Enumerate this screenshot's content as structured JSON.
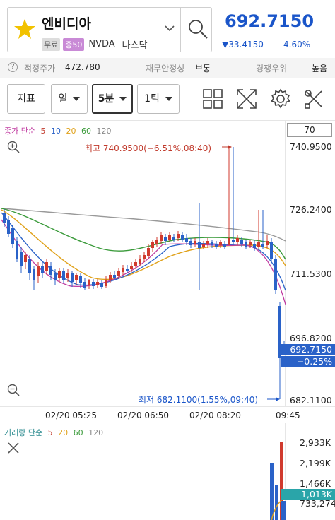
{
  "stock": {
    "name": "엔비디아",
    "badge_free": "무료",
    "badge_margin": "증50",
    "ticker": "NVDA",
    "market": "나스닥",
    "price": "692.7150",
    "change": "▼33.4150",
    "change_rate": "4.60%"
  },
  "info_bar": {
    "fair_price_label": "적정주가",
    "fair_price_value": "472.780",
    "stability_label": "재무안정성",
    "stability_value": "보통",
    "competition_label": "경쟁우위",
    "competition_value": "높음"
  },
  "toolbar": {
    "indicator_label": "지표",
    "day_label": "일",
    "interval_label": "5분",
    "tick_label": "1틱"
  },
  "chart": {
    "legend_title": "종가 단순",
    "legend_ma": [
      "5",
      "10",
      "20",
      "60",
      "120"
    ],
    "legend_colors": [
      "#c0392b",
      "#2a62c8",
      "#e0a21b",
      "#3a9a3a",
      "#888888"
    ],
    "level_box": "70",
    "price_ticks": [
      "740.9500",
      "726.2400",
      "711.5300",
      "696.8200",
      "682.1100"
    ],
    "current_price_tag": "692.7150",
    "current_rate_tag": "−0.25%",
    "high_label": "최고 740.9500(−6.51%,08:40)",
    "low_label": "최저 682.1100(1.55%,09:40)",
    "time_labels": [
      "02/20 05:25",
      "02/20 06:50",
      "02/20 08:20",
      "09:45"
    ],
    "up_color": "#d03a2e",
    "down_color": "#2a62c8"
  },
  "volume": {
    "legend_title": "거래량 단순",
    "legend_ma": [
      "5",
      "20",
      "60",
      "120"
    ],
    "legend_colors": [
      "#c0392b",
      "#e0a21b",
      "#3a9a3a",
      "#888888"
    ],
    "axis_ticks": [
      "2,933K",
      "2,199K",
      "1,466K",
      "733,274"
    ],
    "current_tag": "1,013K"
  }
}
